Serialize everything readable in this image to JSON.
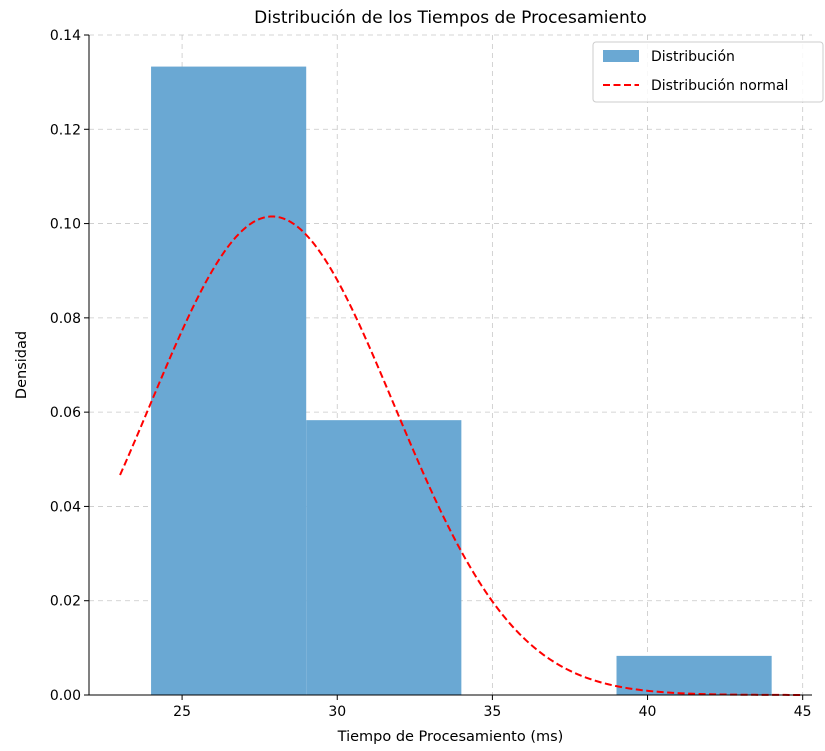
{
  "chart_data": {
    "type": "bar",
    "title": "Distribución de los Tiempos de Procesamiento",
    "xlabel": "Tiempo de Procesamiento (ms)",
    "ylabel": "Densidad",
    "xlim": [
      22,
      45.3
    ],
    "ylim": [
      0,
      0.14
    ],
    "x_ticks": [
      25,
      30,
      35,
      40,
      45
    ],
    "y_ticks": [
      0.0,
      0.02,
      0.04,
      0.06,
      0.08,
      0.1,
      0.12,
      0.14
    ],
    "x_tick_labels": [
      "25",
      "30",
      "35",
      "40",
      "45"
    ],
    "y_tick_labels": [
      "0.00",
      "0.02",
      "0.04",
      "0.06",
      "0.08",
      "0.10",
      "0.12",
      "0.14"
    ],
    "grid": true,
    "legend_position": "top-right",
    "histogram": {
      "name": "Distribución",
      "color": "#6aa8d3",
      "bins": [
        {
          "x0": 24,
          "x1": 29,
          "value": 0.1333
        },
        {
          "x0": 29,
          "x1": 34,
          "value": 0.0583
        },
        {
          "x0": 34,
          "x1": 39,
          "value": 0.0
        },
        {
          "x0": 39,
          "x1": 44,
          "value": 0.0083
        }
      ]
    },
    "normal_curve": {
      "name": "Distribución normal",
      "color": "#ff0000",
      "style": "dashed",
      "mean": 27.9,
      "std": 3.93,
      "x_range": [
        23,
        45
      ]
    }
  }
}
